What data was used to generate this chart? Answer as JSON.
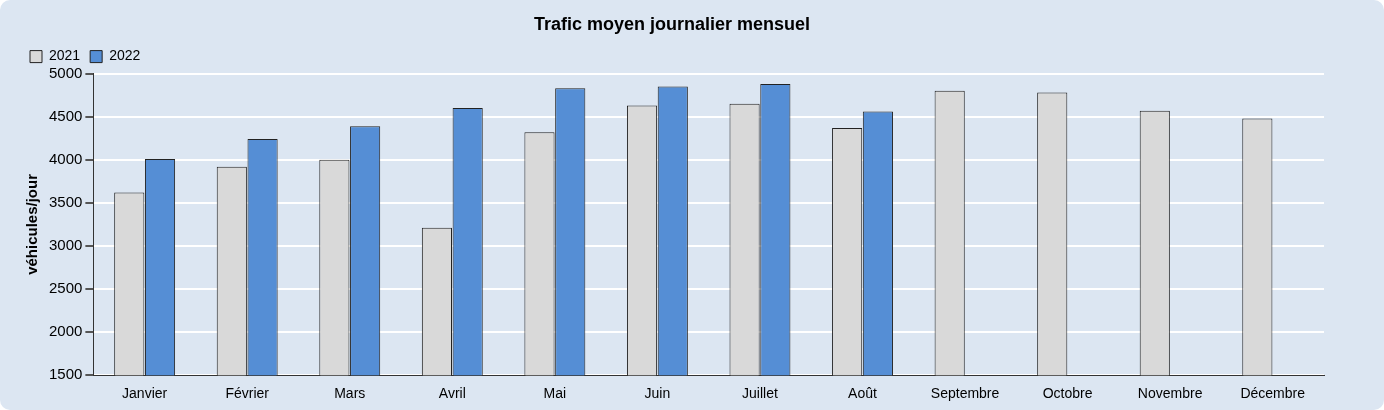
{
  "chart_data": {
    "type": "bar",
    "title": "Trafic moyen journalier mensuel",
    "ylabel": "véhicules/jour",
    "categories": [
      "Janvier",
      "Février",
      "Mars",
      "Avril",
      "Mai",
      "Juin",
      "Juillet",
      "Août",
      "Septembre",
      "Octobre",
      "Novembre",
      "Décembre"
    ],
    "series": [
      {
        "name": "2021",
        "color": "#d9d9d9",
        "values": [
          3620,
          3920,
          4000,
          3210,
          4320,
          4630,
          4650,
          4370,
          4800,
          4780,
          4570,
          4480
        ]
      },
      {
        "name": "2022",
        "color": "#558ed5",
        "values": [
          4010,
          4240,
          4390,
          4600,
          4830,
          4850,
          4880,
          4560,
          null,
          null,
          null,
          null
        ]
      }
    ],
    "ylim": [
      1500,
      5000
    ],
    "yticks": [
      1500,
      2000,
      2500,
      3000,
      3500,
      4000,
      4500,
      5000
    ],
    "grid": "y",
    "legend": "top left"
  }
}
